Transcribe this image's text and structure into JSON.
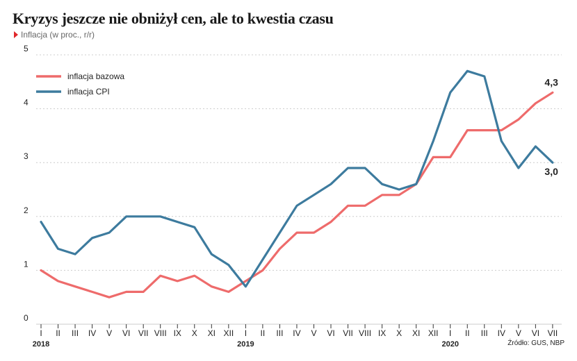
{
  "header": {
    "title": "Kryzys jeszcze nie obniżył cen, ale to kwestia czasu",
    "subtitle": "Inflacja (w proc., r/r)"
  },
  "source": "Źródło: GUS, NBP",
  "colors": {
    "bazowa": "#ee6b6b",
    "cpi": "#3d7b9e",
    "grid": "#cccccc"
  },
  "chart_data": {
    "type": "line",
    "x": [
      "I",
      "II",
      "III",
      "IV",
      "V",
      "VI",
      "VII",
      "VIII",
      "IX",
      "X",
      "XI",
      "XII",
      "I",
      "II",
      "III",
      "IV",
      "V",
      "VI",
      "VII",
      "VIII",
      "IX",
      "X",
      "XI",
      "XII",
      "I",
      "II",
      "III",
      "IV",
      "V",
      "VI",
      "VII"
    ],
    "year_labels": [
      {
        "index": 0,
        "label": "2018"
      },
      {
        "index": 12,
        "label": "2019"
      },
      {
        "index": 24,
        "label": "2020"
      }
    ],
    "series": [
      {
        "name": "inflacja bazowa",
        "values": [
          1.0,
          0.8,
          0.7,
          0.6,
          0.5,
          0.6,
          0.6,
          0.9,
          0.8,
          0.9,
          0.7,
          0.6,
          0.8,
          1.0,
          1.4,
          1.7,
          1.7,
          1.9,
          2.2,
          2.2,
          2.4,
          2.4,
          2.6,
          3.1,
          3.1,
          3.6,
          3.6,
          3.6,
          3.8,
          4.1,
          4.3
        ]
      },
      {
        "name": "inflacja CPI",
        "values": [
          1.9,
          1.4,
          1.3,
          1.6,
          1.7,
          2.0,
          2.0,
          2.0,
          1.9,
          1.8,
          1.3,
          1.1,
          0.7,
          1.2,
          1.7,
          2.2,
          2.4,
          2.6,
          2.9,
          2.9,
          2.6,
          2.5,
          2.6,
          3.4,
          4.3,
          4.7,
          4.6,
          3.4,
          2.9,
          3.3,
          3.0
        ]
      }
    ],
    "end_labels": {
      "bazowa": "4,3",
      "cpi": "3,0"
    },
    "yticks": [
      0,
      1,
      2,
      3,
      4,
      5
    ],
    "ylim": [
      0,
      5
    ],
    "grid": "horizontal dashed",
    "legend": "top-left"
  }
}
